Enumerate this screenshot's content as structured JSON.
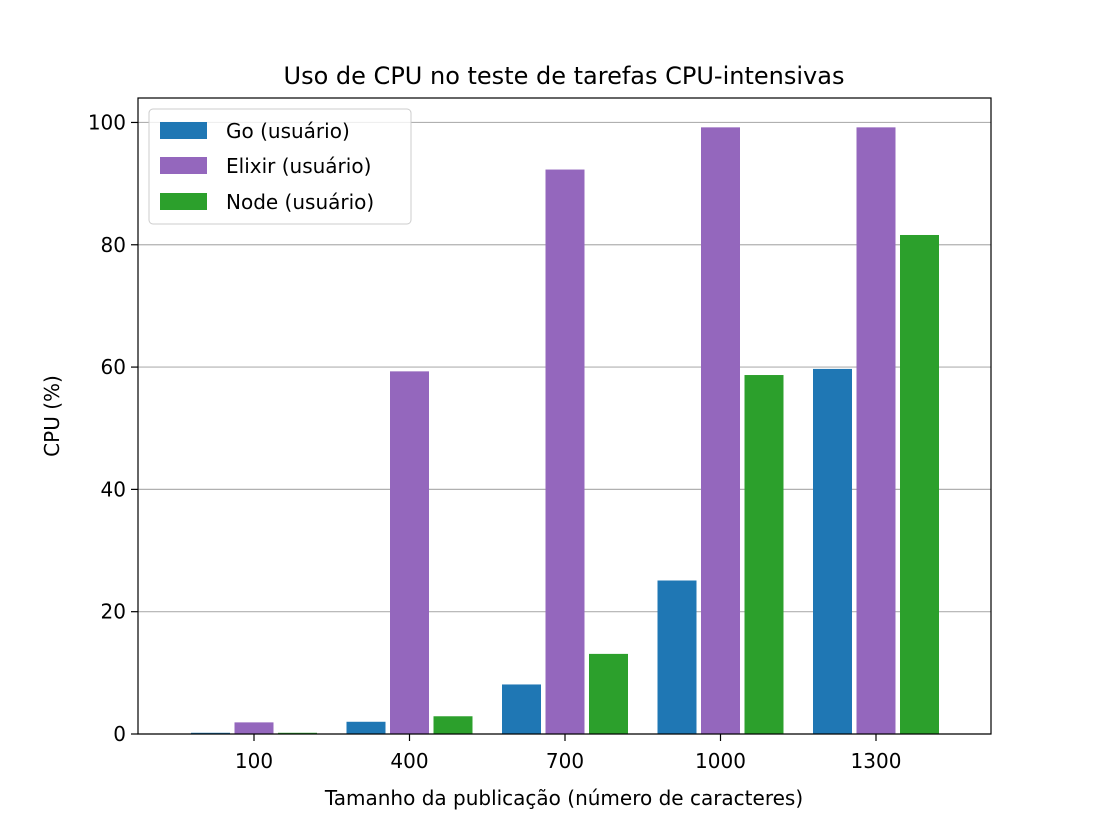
{
  "chart_data": {
    "type": "bar",
    "title": "Uso de CPU no teste de tarefas CPU-intensivas",
    "xlabel": "Tamanho da publicação (número de caracteres)",
    "ylabel": "CPU (%)",
    "categories": [
      "100",
      "400",
      "700",
      "1000",
      "1300"
    ],
    "series": [
      {
        "name": "Go (usuário)",
        "color": "#1f77b4",
        "values": [
          0.2,
          2.0,
          8.1,
          25.1,
          59.7
        ]
      },
      {
        "name": "Elixir (usuário)",
        "color": "#9467bd",
        "values": [
          1.9,
          59.3,
          92.3,
          99.2,
          99.2
        ]
      },
      {
        "name": "Node (usuário)",
        "color": "#2ca02c",
        "values": [
          0.2,
          2.9,
          13.1,
          58.7,
          81.6
        ]
      }
    ],
    "ylim": [
      0,
      104
    ],
    "yticks": [
      0,
      20,
      40,
      60,
      80,
      100
    ],
    "grid": "y",
    "legend": "top-left"
  }
}
